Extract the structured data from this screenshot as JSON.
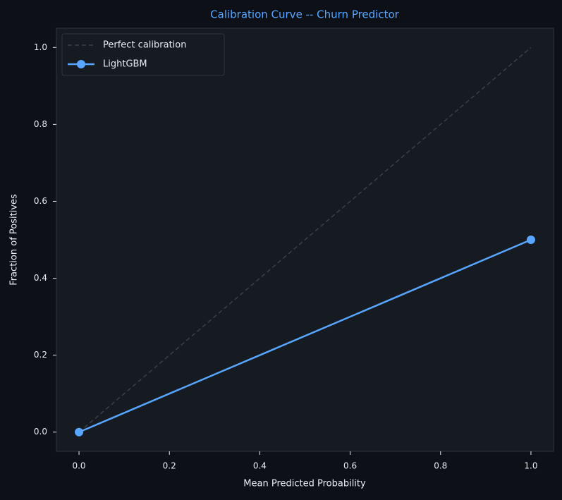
{
  "chart_data": {
    "type": "line",
    "title": "Calibration Curve -- Churn Predictor",
    "xlabel": "Mean Predicted Probability",
    "ylabel": "Fraction of Positives",
    "x": [
      0,
      1
    ],
    "series": [
      {
        "name": "Perfect calibration",
        "color": "#3b4048",
        "linestyle": "dashed",
        "marker": false,
        "values": [
          0,
          1
        ]
      },
      {
        "name": "LightGBM",
        "color": "#58a6ff",
        "linestyle": "solid",
        "marker": true,
        "values": [
          0,
          0.5
        ]
      }
    ],
    "xlim": [
      -0.05,
      1.05
    ],
    "ylim": [
      -0.05,
      1.05
    ],
    "xticks": [
      {
        "value": 0,
        "label": "0.0"
      },
      0.2,
      0.4,
      0.6,
      0.8,
      {
        "value": 1,
        "label": "1.0"
      }
    ],
    "yticks": [
      {
        "value": 0,
        "label": "0.0"
      },
      0.2,
      0.4,
      0.6,
      0.8,
      {
        "value": 1,
        "label": "1.0"
      }
    ],
    "grid": false,
    "legend": "upper left"
  }
}
